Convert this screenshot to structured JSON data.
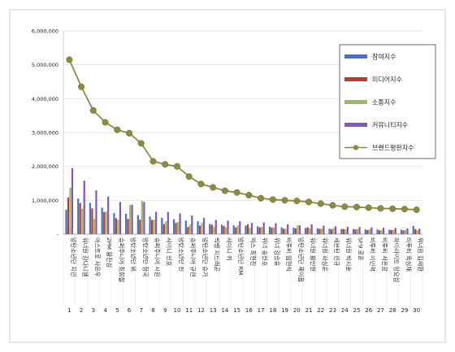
{
  "chart_data": {
    "type": "bar",
    "title": "",
    "xlabel": "",
    "ylabel": "",
    "ylim": [
      0,
      6000000
    ],
    "yticks": [
      "-",
      "1,000,000",
      "2,000,000",
      "3,000,000",
      "4,000,000",
      "5,000,000",
      "6,000,000"
    ],
    "grid": true,
    "legend_position": "top-right",
    "categories": [
      "방탄소년단 지민",
      "워너원 강다니엘",
      "아스트로 차은우",
      "2PM 황찬성",
      "슈퍼주니어 최희철",
      "방탄소년단 뷔",
      "방탄소년단 정국",
      "슈퍼주니어 시원",
      "샤이니 민호",
      "방탄소년단 진",
      "슈퍼주니어 규현",
      "방탄소년단 슈가",
      "빅뱅 지드래곤",
      "샤이니 키",
      "방탄소년단 RM",
      "빅스 최현찬",
      "위너 송민호",
      "위너 강승윤",
      "비투비 임현식",
      "방탄소년단 제이홉",
      "워너원 황민현",
      "워너원 하성운",
      "세븐틴 민규",
      "워너원 박지훈",
      "SF9 로운",
      "비투비 이민혁",
      "비투비 서은광",
      "하이라이트 양요섭",
      "비투비 육성재",
      "워너원 김재환"
    ],
    "index_labels": [
      "1",
      "2",
      "3",
      "4",
      "5",
      "6",
      "7",
      "8",
      "9",
      "10",
      "11",
      "12",
      "13",
      "14",
      "15",
      "16",
      "17",
      "18",
      "19",
      "20",
      "21",
      "22",
      "23",
      "24",
      "25",
      "26",
      "27",
      "28",
      "29",
      "30"
    ],
    "series": [
      {
        "name": "참여지수",
        "kind": "bar",
        "color": "#4472c4",
        "values": [
          720000,
          1050000,
          920000,
          780000,
          620000,
          600000,
          560000,
          520000,
          480000,
          440000,
          400000,
          380000,
          300000,
          280000,
          260000,
          250000,
          230000,
          220000,
          200000,
          190000,
          180000,
          170000,
          160000,
          150000,
          150000,
          140000,
          140000,
          130000,
          130000,
          240000
        ]
      },
      {
        "name": "미디어지수",
        "kind": "bar",
        "color": "#c0392b",
        "values": [
          1080000,
          920000,
          760000,
          650000,
          470000,
          450000,
          430000,
          420000,
          300000,
          330000,
          210000,
          250000,
          280000,
          240000,
          200000,
          290000,
          200000,
          190000,
          160000,
          170000,
          200000,
          160000,
          140000,
          150000,
          140000,
          120000,
          110000,
          120000,
          110000,
          150000
        ]
      },
      {
        "name": "소통지수",
        "kind": "bar",
        "color": "#9bbb59",
        "values": [
          1370000,
          750000,
          450000,
          670000,
          420000,
          860000,
          980000,
          430000,
          380000,
          360000,
          280000,
          330000,
          220000,
          200000,
          260000,
          190000,
          210000,
          200000,
          150000,
          260000,
          170000,
          160000,
          180000,
          140000,
          150000,
          140000,
          120000,
          130000,
          120000,
          110000
        ]
      },
      {
        "name": "커뮤니티지수",
        "kind": "bar",
        "color": "#7e57c2",
        "values": [
          1950000,
          1580000,
          1290000,
          1110000,
          950000,
          870000,
          950000,
          660000,
          650000,
          610000,
          550000,
          480000,
          420000,
          400000,
          380000,
          330000,
          340000,
          320000,
          290000,
          260000,
          290000,
          250000,
          230000,
          220000,
          210000,
          200000,
          190000,
          180000,
          170000,
          160000
        ]
      },
      {
        "name": "브랜드평판지수",
        "kind": "line",
        "color": "#8d8b3e",
        "values": [
          5150000,
          4350000,
          3650000,
          3300000,
          3080000,
          2980000,
          2680000,
          2150000,
          2060000,
          2000000,
          1700000,
          1480000,
          1380000,
          1280000,
          1230000,
          1150000,
          1060000,
          1020000,
          1000000,
          980000,
          950000,
          900000,
          850000,
          810000,
          800000,
          780000,
          760000,
          750000,
          740000,
          720000
        ]
      }
    ]
  }
}
